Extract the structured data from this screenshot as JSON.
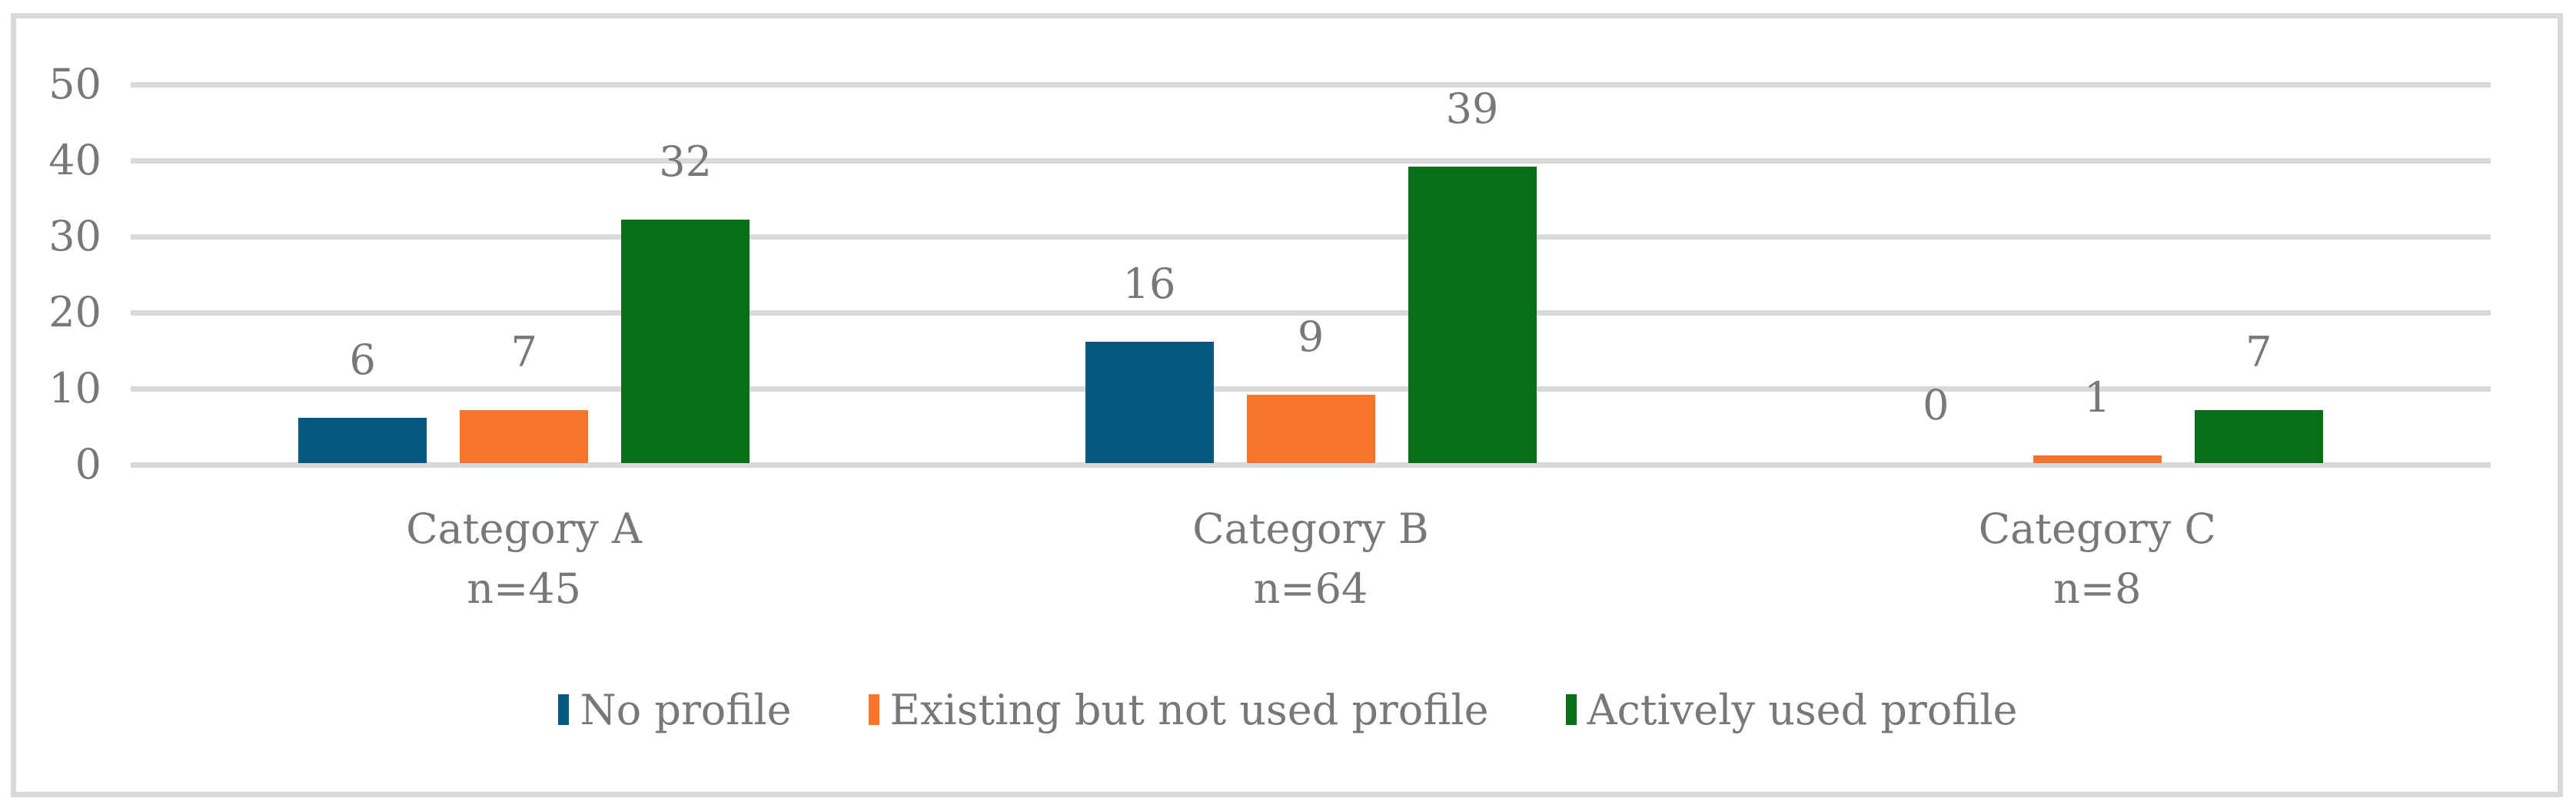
{
  "chart_data": {
    "type": "bar",
    "title": "",
    "xlabel": "",
    "ylabel": "",
    "categories": [
      {
        "label": "Category A",
        "n": "n=45"
      },
      {
        "label": "Category B",
        "n": "n=64"
      },
      {
        "label": "Category C",
        "n": "n=8"
      }
    ],
    "series": [
      {
        "name": "No profile",
        "color": "#065A7F",
        "values": [
          6,
          16,
          0
        ]
      },
      {
        "name": "Existing but not used profile",
        "color": "#F9752B",
        "values": [
          7,
          9,
          1
        ]
      },
      {
        "name": "Actively used profile",
        "color": "#077016",
        "values": [
          32,
          39,
          7
        ]
      }
    ],
    "y_axis": {
      "ticks": [
        0,
        10,
        20,
        30,
        40,
        50
      ],
      "range": [
        0,
        50
      ],
      "grid": true
    },
    "data_labels": true,
    "legend_position": "bottom",
    "colors": {
      "gridline": "#D9D9D9",
      "border": "#D9D9D9",
      "text": "#787878",
      "background": "#FFFFFF"
    }
  }
}
